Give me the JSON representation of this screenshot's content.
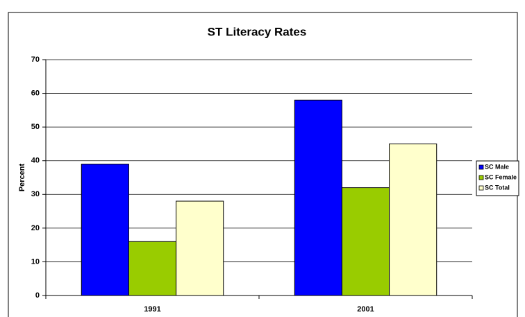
{
  "chart_data": {
    "type": "bar",
    "title": "ST Literacy Rates",
    "y_label": "Percent",
    "categories": [
      "1991",
      "2001"
    ],
    "series": [
      {
        "name": "SC Male",
        "color": "#0000ff",
        "values": [
          39,
          58
        ]
      },
      {
        "name": "SC Female",
        "color": "#99cc00",
        "values": [
          16,
          32
        ]
      },
      {
        "name": "SC Total",
        "color": "#ffffcc",
        "values": [
          28,
          45
        ]
      }
    ],
    "ylim": [
      0,
      70
    ],
    "yticks": [
      0,
      10,
      20,
      30,
      40,
      50,
      60,
      70
    ],
    "grid": true,
    "legend": "right"
  }
}
